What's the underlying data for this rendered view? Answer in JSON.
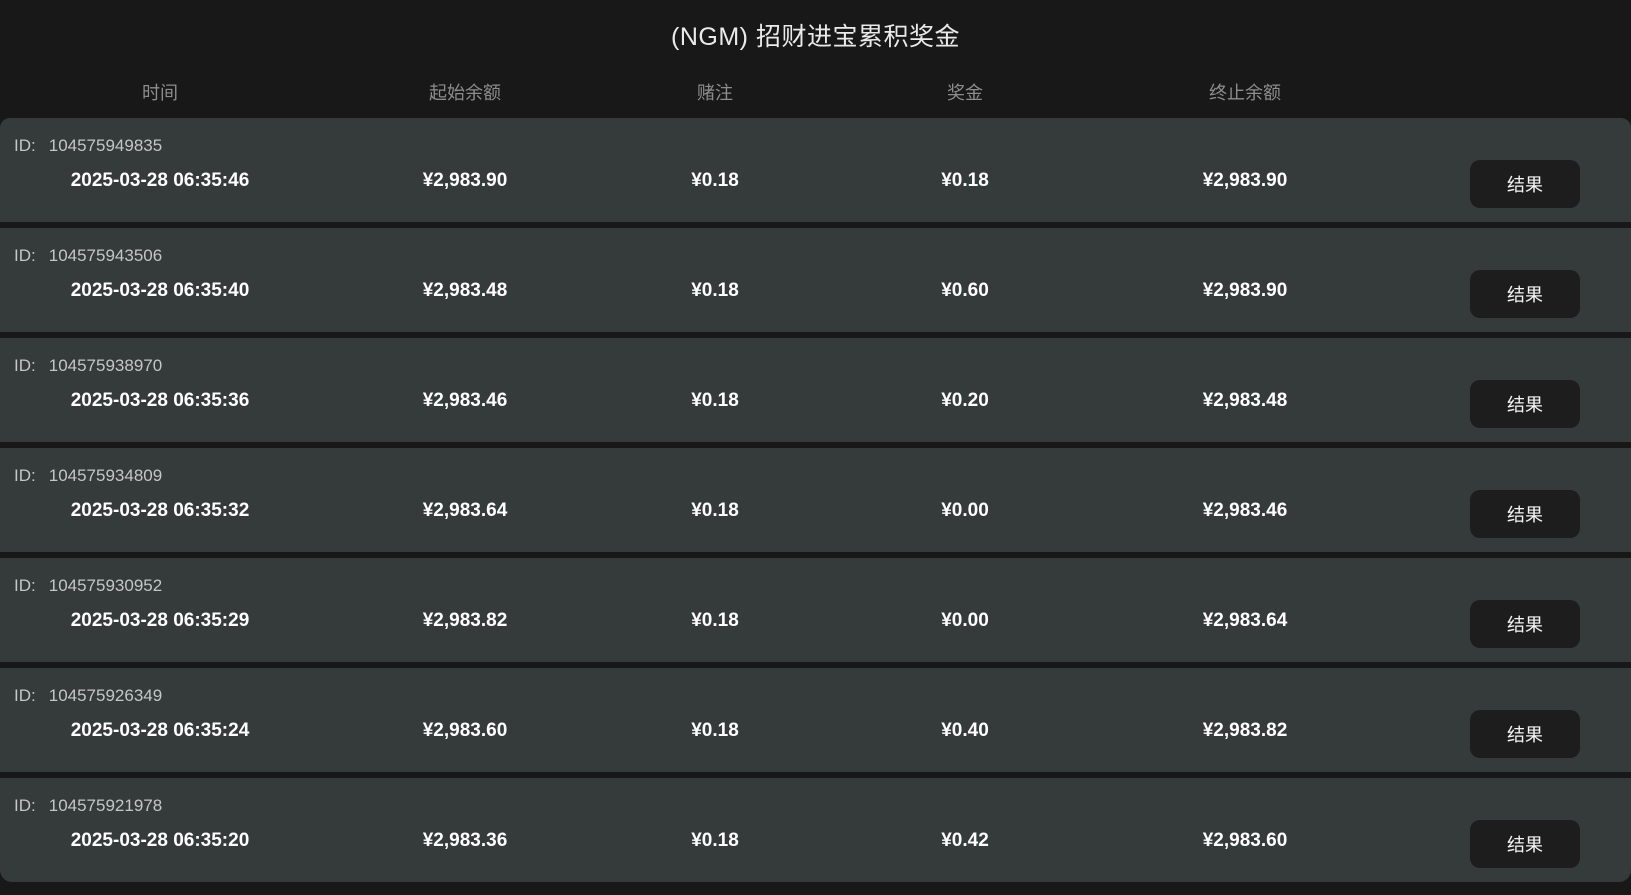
{
  "header": {
    "title": "(NGM) 招财进宝累积奖金"
  },
  "table": {
    "columns": [
      "时间",
      "起始余额",
      "赌注",
      "奖金",
      "终止余额"
    ],
    "id_label": "ID:",
    "action_label": "结果",
    "rows": [
      {
        "id": "104575949835",
        "time": "2025-03-28 06:35:46",
        "start_balance": "¥2,983.90",
        "bet": "¥0.18",
        "prize": "¥0.18",
        "end_balance": "¥2,983.90"
      },
      {
        "id": "104575943506",
        "time": "2025-03-28 06:35:40",
        "start_balance": "¥2,983.48",
        "bet": "¥0.18",
        "prize": "¥0.60",
        "end_balance": "¥2,983.90"
      },
      {
        "id": "104575938970",
        "time": "2025-03-28 06:35:36",
        "start_balance": "¥2,983.46",
        "bet": "¥0.18",
        "prize": "¥0.20",
        "end_balance": "¥2,983.48"
      },
      {
        "id": "104575934809",
        "time": "2025-03-28 06:35:32",
        "start_balance": "¥2,983.64",
        "bet": "¥0.18",
        "prize": "¥0.00",
        "end_balance": "¥2,983.46"
      },
      {
        "id": "104575930952",
        "time": "2025-03-28 06:35:29",
        "start_balance": "¥2,983.82",
        "bet": "¥0.18",
        "prize": "¥0.00",
        "end_balance": "¥2,983.64"
      },
      {
        "id": "104575926349",
        "time": "2025-03-28 06:35:24",
        "start_balance": "¥2,983.60",
        "bet": "¥0.18",
        "prize": "¥0.40",
        "end_balance": "¥2,983.82"
      },
      {
        "id": "104575921978",
        "time": "2025-03-28 06:35:20",
        "start_balance": "¥2,983.36",
        "bet": "¥0.18",
        "prize": "¥0.42",
        "end_balance": "¥2,983.60"
      }
    ]
  },
  "colors": {
    "page_bg": "#181818",
    "row_bg": "#353a3b",
    "button_bg": "#1d1d1d",
    "title_text": "#eaeaea",
    "header_text": "#8d8d8d",
    "id_text": "#c3c7c6",
    "value_text": "#ffffff"
  }
}
